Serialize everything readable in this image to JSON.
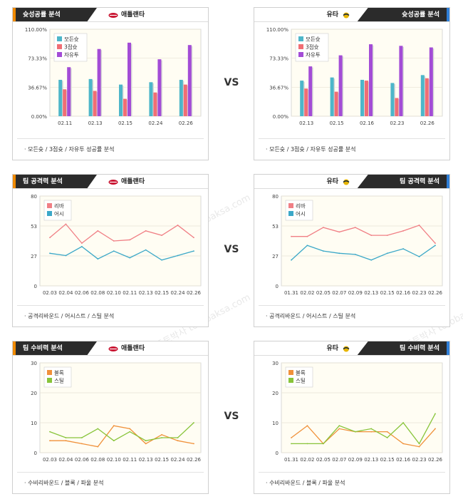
{
  "watermark": "토토박사 totobaksa.com",
  "vs_label": "VS",
  "colors": {
    "orange_tab": "#f08a00",
    "blue_tab": "#2f7fd8",
    "teal": "#4db6c9",
    "red": "#f06e74",
    "purple": "#a34cd6",
    "rebound": "#f07f85",
    "assist": "#3ba8c8",
    "block": "#f0913a",
    "steal": "#88c43a"
  },
  "panels": [
    {
      "id": "p1",
      "side": "left",
      "title": "슛성공률 분석",
      "team": "애틀랜타",
      "team_icon": "hawks-logo-icon",
      "footer": "· 모든슛 / 3점슛 / 자유투 성공률 분석",
      "chart_data": {
        "type": "bar",
        "categories": [
          "02.11",
          "02.13",
          "02.15",
          "02.24",
          "02.26"
        ],
        "ylim": [
          0,
          110
        ],
        "yticks": [
          "0.00%",
          "36.67%",
          "73.33%",
          "110.00%"
        ],
        "legend": [
          "모든슛",
          "3점슛",
          "자유투"
        ],
        "legend_placement": "top-left",
        "series": [
          {
            "name": "모든슛",
            "values": [
              46,
              47,
              40,
              43,
              46
            ]
          },
          {
            "name": "3점슛",
            "values": [
              34,
              32,
              22,
              30,
              40
            ]
          },
          {
            "name": "자유투",
            "values": [
              62,
              85,
              93,
              72,
              90
            ]
          }
        ]
      }
    },
    {
      "id": "p2",
      "side": "right",
      "title": "슛성공률 분석",
      "team": "유타",
      "team_icon": "jazz-logo-icon",
      "footer": "· 모든슛 / 3점슛 / 자유투 성공률 분석",
      "chart_data": {
        "type": "bar",
        "categories": [
          "02.13",
          "02.15",
          "02.16",
          "02.23",
          "02.26"
        ],
        "ylim": [
          0,
          110
        ],
        "yticks": [
          "0.00%",
          "36.67%",
          "73.33%",
          "110.00%"
        ],
        "legend": [
          "모든슛",
          "3점슛",
          "자유투"
        ],
        "legend_placement": "top-left",
        "series": [
          {
            "name": "모든슛",
            "values": [
              45,
              49,
              46,
              42,
              52
            ]
          },
          {
            "name": "3점슛",
            "values": [
              35,
              31,
              45,
              23,
              48
            ]
          },
          {
            "name": "자유투",
            "values": [
              63,
              77,
              91,
              89,
              87
            ]
          }
        ]
      }
    },
    {
      "id": "p3",
      "side": "left",
      "title": "팀 공격력 분석",
      "team": "애틀랜타",
      "team_icon": "hawks-logo-icon",
      "footer": "· 공격리바운드 / 어시스트 / 스틸 분석",
      "chart_data": {
        "type": "line",
        "categories": [
          "02.03",
          "02.04",
          "02.06",
          "02.08",
          "02.10",
          "02.11",
          "02.13",
          "02.15",
          "02.24",
          "02.26"
        ],
        "ylim": [
          0,
          80
        ],
        "yticks": [
          "0",
          "27",
          "53",
          "80"
        ],
        "legend": [
          "리바",
          "어시"
        ],
        "legend_placement": "top-left",
        "series": [
          {
            "name": "리바",
            "values": [
              43,
              55,
              38,
              49,
              40,
              41,
              49,
              45,
              54,
              43
            ]
          },
          {
            "name": "어시",
            "values": [
              29,
              27,
              35,
              24,
              31,
              25,
              32,
              23,
              27,
              31
            ]
          }
        ]
      }
    },
    {
      "id": "p4",
      "side": "right",
      "title": "팀 공격력 분석",
      "team": "유타",
      "team_icon": "jazz-logo-icon",
      "footer": "· 공격리바운드 / 어시스트 / 스틸 분석",
      "chart_data": {
        "type": "line",
        "categories": [
          "01.31",
          "02.02",
          "02.05",
          "02.07",
          "02.09",
          "02.13",
          "02.15",
          "02.16",
          "02.23",
          "02.26"
        ],
        "ylim": [
          0,
          80
        ],
        "yticks": [
          "0",
          "27",
          "53",
          "80"
        ],
        "legend": [
          "리바",
          "어시"
        ],
        "legend_placement": "top-left",
        "series": [
          {
            "name": "리바",
            "values": [
              44,
              44,
              52,
              48,
              52,
              45,
              45,
              49,
              54,
              38
            ]
          },
          {
            "name": "어시",
            "values": [
              23,
              36,
              31,
              29,
              28,
              23,
              29,
              33,
              26,
              36
            ]
          }
        ]
      }
    },
    {
      "id": "p5",
      "side": "left",
      "title": "팀 수비력 분석",
      "team": "애틀랜타",
      "team_icon": "hawks-logo-icon",
      "footer": "· 수비리바운드 / 블록 / 파울 분석",
      "chart_data": {
        "type": "line",
        "categories": [
          "02.03",
          "02.04",
          "02.06",
          "02.08",
          "02.10",
          "02.11",
          "02.13",
          "02.15",
          "02.24",
          "02.26"
        ],
        "ylim": [
          0,
          30
        ],
        "yticks": [
          "0",
          "10",
          "20",
          "30"
        ],
        "legend": [
          "블록",
          "스틸"
        ],
        "legend_placement": "top-left",
        "series": [
          {
            "name": "블록",
            "values": [
              4,
              4,
              3,
              2,
              9,
              8,
              3,
              6,
              4,
              3
            ]
          },
          {
            "name": "스틸",
            "values": [
              7,
              5,
              5,
              8,
              4,
              7,
              4,
              5,
              5,
              10
            ]
          }
        ]
      }
    },
    {
      "id": "p6",
      "side": "right",
      "title": "팀 수비력 분석",
      "team": "유타",
      "team_icon": "jazz-logo-icon",
      "footer": "· 수비리바운드 / 블록 / 파울 분석",
      "chart_data": {
        "type": "line",
        "categories": [
          "01.31",
          "02.02",
          "02.05",
          "02.07",
          "02.09",
          "02.13",
          "02.15",
          "02.16",
          "02.23",
          "02.26"
        ],
        "ylim": [
          0,
          30
        ],
        "yticks": [
          "0",
          "10",
          "20",
          "30"
        ],
        "legend": [
          "블록",
          "스틸"
        ],
        "legend_placement": "top-left",
        "series": [
          {
            "name": "블록",
            "values": [
              5,
              9,
              3,
              8,
              7,
              7,
              7,
              3,
              2,
              8
            ]
          },
          {
            "name": "스틸",
            "values": [
              3,
              3,
              3,
              9,
              7,
              8,
              5,
              10,
              3,
              13
            ]
          }
        ]
      }
    }
  ]
}
